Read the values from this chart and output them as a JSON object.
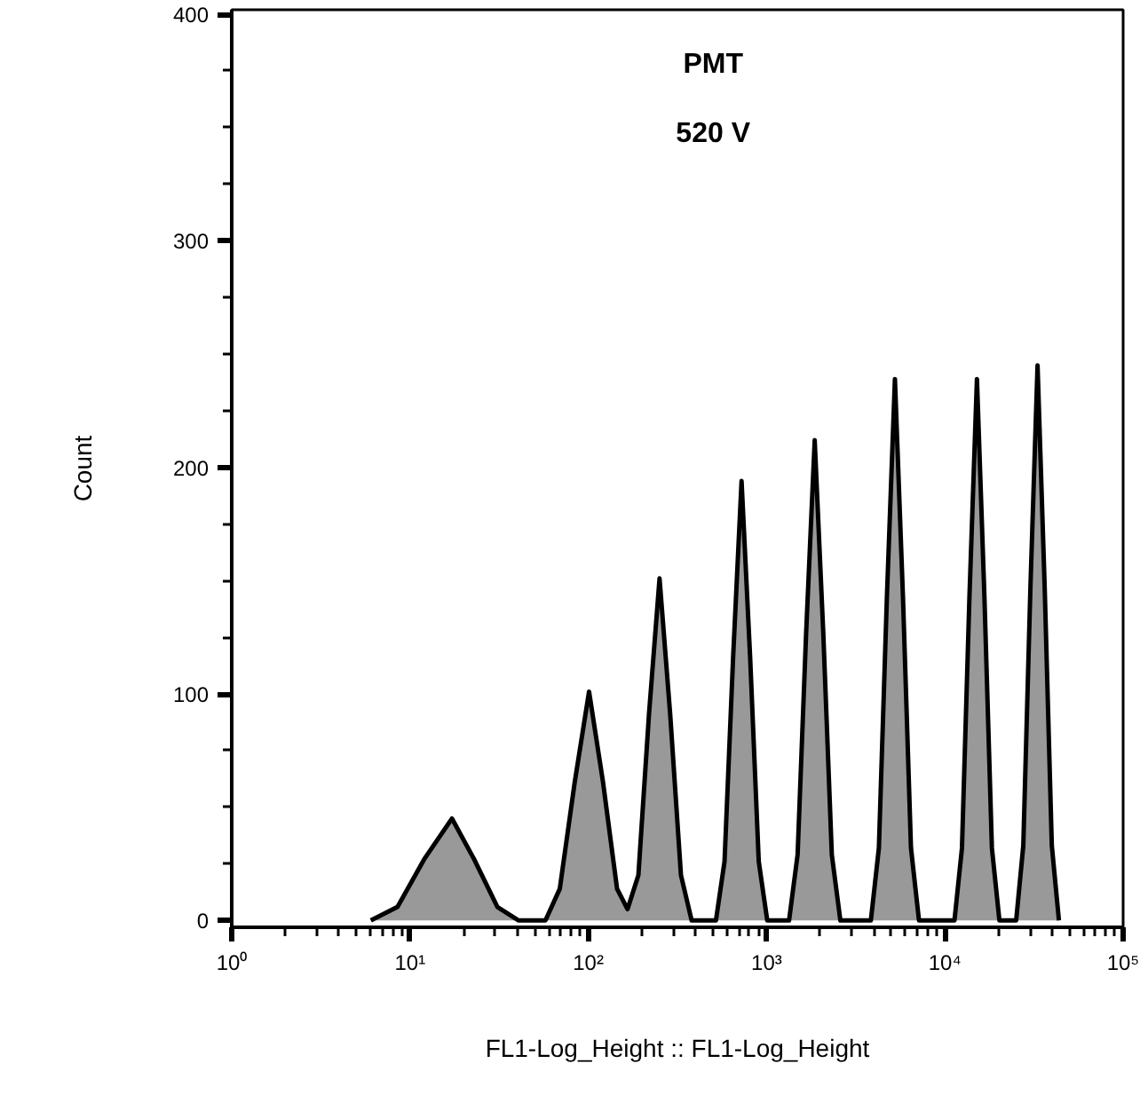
{
  "chart_data": {
    "type": "area",
    "xlabel": "FL1-Log_Height :: FL1-Log_Height",
    "ylabel": "Count",
    "annotations": [
      "PMT",
      "520 V"
    ],
    "log": "x",
    "grid": false,
    "xlim": [
      1,
      100000
    ],
    "xticks": [
      {
        "value": 1,
        "label": "10⁰"
      },
      {
        "value": 10,
        "label": "10¹"
      },
      {
        "value": 100,
        "label": "10²"
      },
      {
        "value": 1000,
        "label": "10³"
      },
      {
        "value": 10000,
        "label": "10⁴"
      },
      {
        "value": 100000,
        "label": "10⁵"
      }
    ],
    "ylim": [
      -3,
      402
    ],
    "yticks": [
      0,
      100,
      200,
      300,
      400
    ],
    "series": [
      {
        "color": "#999999",
        "x": [
          6.03,
          8.51,
          12.0,
          17.2,
          22.9,
          30.9,
          40.7,
          57.5,
          69.2,
          83.9,
          101,
          121,
          145,
          166,
          191,
          219,
          251,
          288,
          331,
          380,
          520,
          581,
          649,
          724,
          809,
          904,
          1009,
          1337,
          1493,
          1667,
          1862,
          2080,
          2323,
          2594,
          3846,
          4266,
          4732,
          5248,
          5821,
          6457,
          7161,
          11324,
          12474,
          13740,
          15136,
          16672,
          18365,
          20230,
          25119,
          27542,
          30200,
          33113,
          36308,
          39811,
          43652
        ],
        "values": [
          0,
          6,
          27,
          45,
          27,
          6,
          0,
          0,
          14,
          61,
          101,
          61,
          14,
          5,
          20,
          91,
          151,
          91,
          20,
          0,
          0,
          26,
          116,
          194,
          116,
          26,
          0,
          0,
          29,
          127,
          212,
          127,
          29,
          0,
          0,
          32,
          143,
          239,
          143,
          32,
          0,
          0,
          32,
          143,
          239,
          143,
          32,
          0,
          0,
          33,
          147,
          245,
          147,
          33,
          0
        ]
      }
    ]
  }
}
